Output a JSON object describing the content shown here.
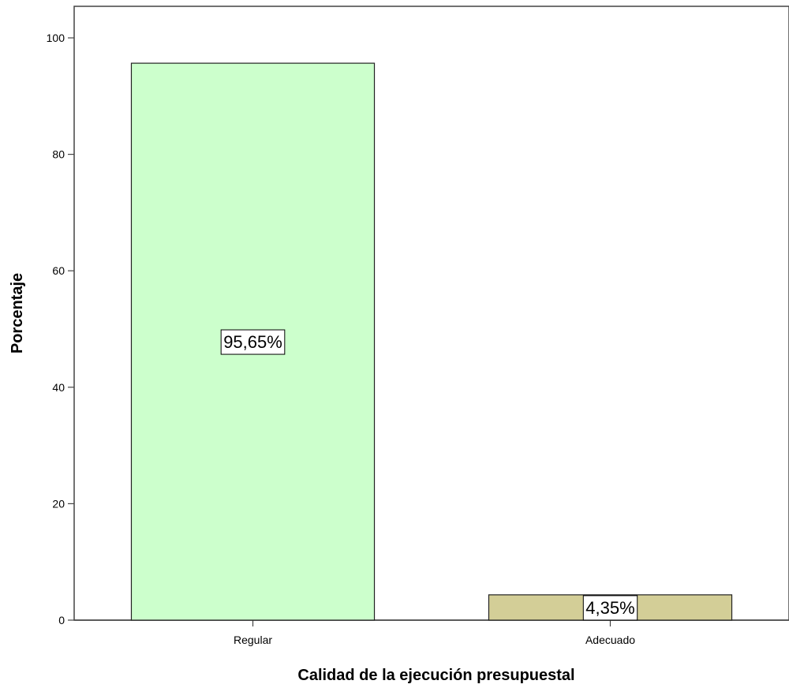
{
  "chart_data": {
    "type": "bar",
    "title": "",
    "xlabel": "Calidad de la ejecución presupuestal",
    "ylabel": "Porcentaje",
    "categories": [
      "Regular",
      "Adecuado"
    ],
    "values": [
      95.65,
      4.35
    ],
    "data_labels": [
      "95,65%",
      "4,35%"
    ],
    "bar_colors": [
      "#ccffcc",
      "#d3ce97"
    ],
    "ylim": [
      0,
      100
    ],
    "yticks": [
      0,
      20,
      40,
      60,
      80,
      100
    ],
    "grid": false,
    "legend": "none"
  }
}
